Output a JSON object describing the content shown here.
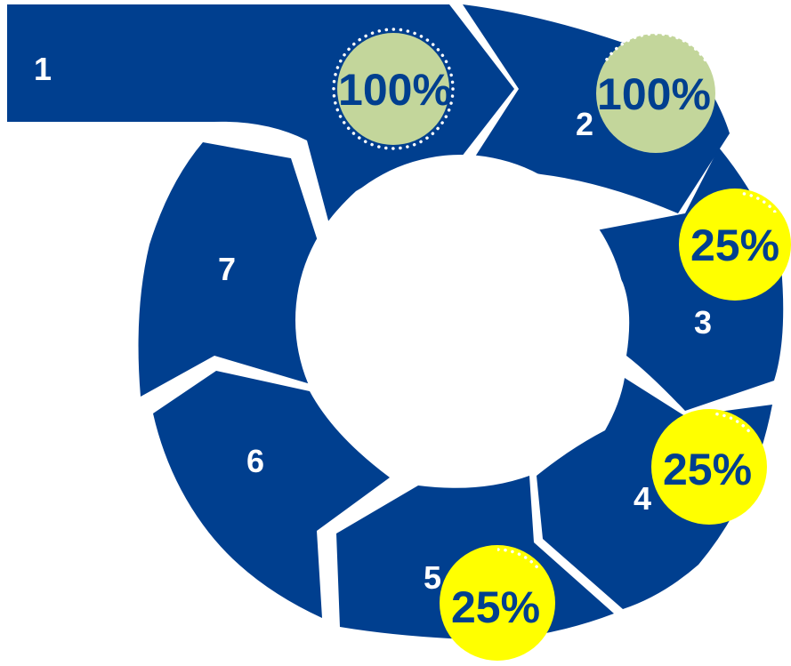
{
  "diagram": {
    "colors": {
      "segment": "#003f8f",
      "segment_text": "#ffffff",
      "badge_complete": "#c3d69b",
      "badge_partial": "#ffff00",
      "badge_text": "#003f8f"
    },
    "steps": [
      {
        "label": "1",
        "badge": "100%"
      },
      {
        "label": "2",
        "badge": "100%"
      },
      {
        "label": "3",
        "badge": "25%"
      },
      {
        "label": "4",
        "badge": "25%"
      },
      {
        "label": "5",
        "badge": "25%"
      },
      {
        "label": "6",
        "badge": ""
      },
      {
        "label": "7",
        "badge": ""
      }
    ]
  }
}
